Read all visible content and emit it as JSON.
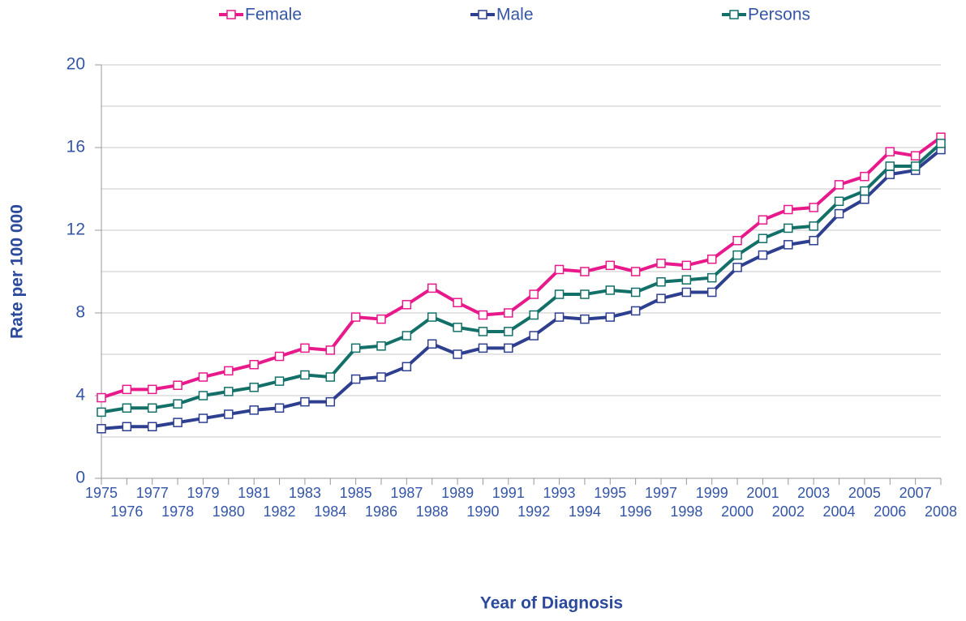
{
  "chart_data": {
    "type": "line",
    "x_label": "Year of Diagnosis",
    "y_label": "Rate per 100 000",
    "x": [
      1975,
      1976,
      1977,
      1978,
      1979,
      1980,
      1981,
      1982,
      1983,
      1984,
      1985,
      1986,
      1987,
      1988,
      1989,
      1990,
      1991,
      1992,
      1993,
      1994,
      1995,
      1996,
      1997,
      1998,
      1999,
      2000,
      2001,
      2002,
      2003,
      2004,
      2005,
      2006,
      2007,
      2008
    ],
    "xlim": [
      1975,
      2008
    ],
    "xticks": [
      1975,
      1976,
      1977,
      1978,
      1979,
      1980,
      1981,
      1982,
      1983,
      1984,
      1985,
      1986,
      1987,
      1988,
      1989,
      1990,
      1991,
      1992,
      1993,
      1994,
      1995,
      1996,
      1997,
      1998,
      1999,
      2000,
      2001,
      2002,
      2003,
      2004,
      2005,
      2006,
      2007,
      2008
    ],
    "ylim": [
      0,
      20
    ],
    "yticks": [
      0,
      4,
      8,
      12,
      16,
      20
    ],
    "minor_yticks": [
      2,
      6,
      10,
      14,
      18
    ],
    "grid": true,
    "legend": "top",
    "series": [
      {
        "name": "Female",
        "color": "#e8198b",
        "values": [
          3.9,
          4.3,
          4.3,
          4.5,
          4.9,
          5.2,
          5.5,
          5.9,
          6.3,
          6.2,
          7.8,
          7.7,
          8.4,
          9.2,
          8.5,
          7.9,
          8.0,
          8.9,
          10.1,
          10.0,
          10.3,
          10.0,
          10.4,
          10.3,
          10.6,
          11.5,
          12.5,
          13.0,
          13.1,
          14.2,
          14.6,
          15.8,
          15.6,
          16.5
        ]
      },
      {
        "name": "Male",
        "color": "#2e3f8f",
        "values": [
          2.4,
          2.5,
          2.5,
          2.7,
          2.9,
          3.1,
          3.3,
          3.4,
          3.7,
          3.7,
          4.8,
          4.9,
          5.4,
          6.5,
          6.0,
          6.3,
          6.3,
          6.9,
          7.8,
          7.7,
          7.8,
          8.1,
          8.7,
          9.0,
          9.0,
          10.2,
          10.8,
          11.3,
          11.5,
          12.8,
          13.5,
          14.7,
          14.9,
          15.9
        ]
      },
      {
        "name": "Persons",
        "color": "#137068",
        "values": [
          3.2,
          3.4,
          3.4,
          3.6,
          4.0,
          4.2,
          4.4,
          4.7,
          5.0,
          4.9,
          6.3,
          6.4,
          6.9,
          7.8,
          7.3,
          7.1,
          7.1,
          7.9,
          8.9,
          8.9,
          9.1,
          9.0,
          9.5,
          9.6,
          9.7,
          10.8,
          11.6,
          12.1,
          12.2,
          13.4,
          13.9,
          15.1,
          15.1,
          16.2
        ]
      }
    ]
  }
}
